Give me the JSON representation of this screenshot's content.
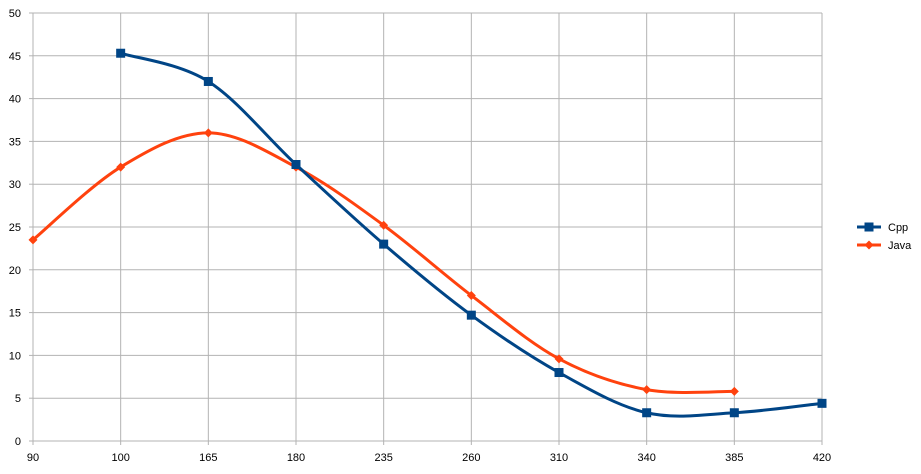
{
  "chart_data": {
    "type": "line",
    "categories": [
      "90",
      "100",
      "165",
      "180",
      "235",
      "260",
      "310",
      "340",
      "385",
      "420"
    ],
    "series": [
      {
        "name": "Cpp",
        "color": "#004586",
        "marker": "square",
        "values": [
          null,
          45.3,
          42,
          32.3,
          23,
          14.7,
          8,
          3.3,
          3.3,
          4.4
        ]
      },
      {
        "name": "Java",
        "color": "#ff420e",
        "marker": "diamond",
        "values": [
          23.5,
          32,
          36,
          32,
          25.2,
          17,
          9.6,
          6,
          5.8,
          null
        ]
      }
    ],
    "ylim": [
      0,
      50
    ],
    "yticks": [
      "0",
      "5",
      "10",
      "15",
      "20",
      "25",
      "30",
      "35",
      "40",
      "45",
      "50"
    ],
    "grid": true,
    "legend": "right",
    "smooth": true
  }
}
